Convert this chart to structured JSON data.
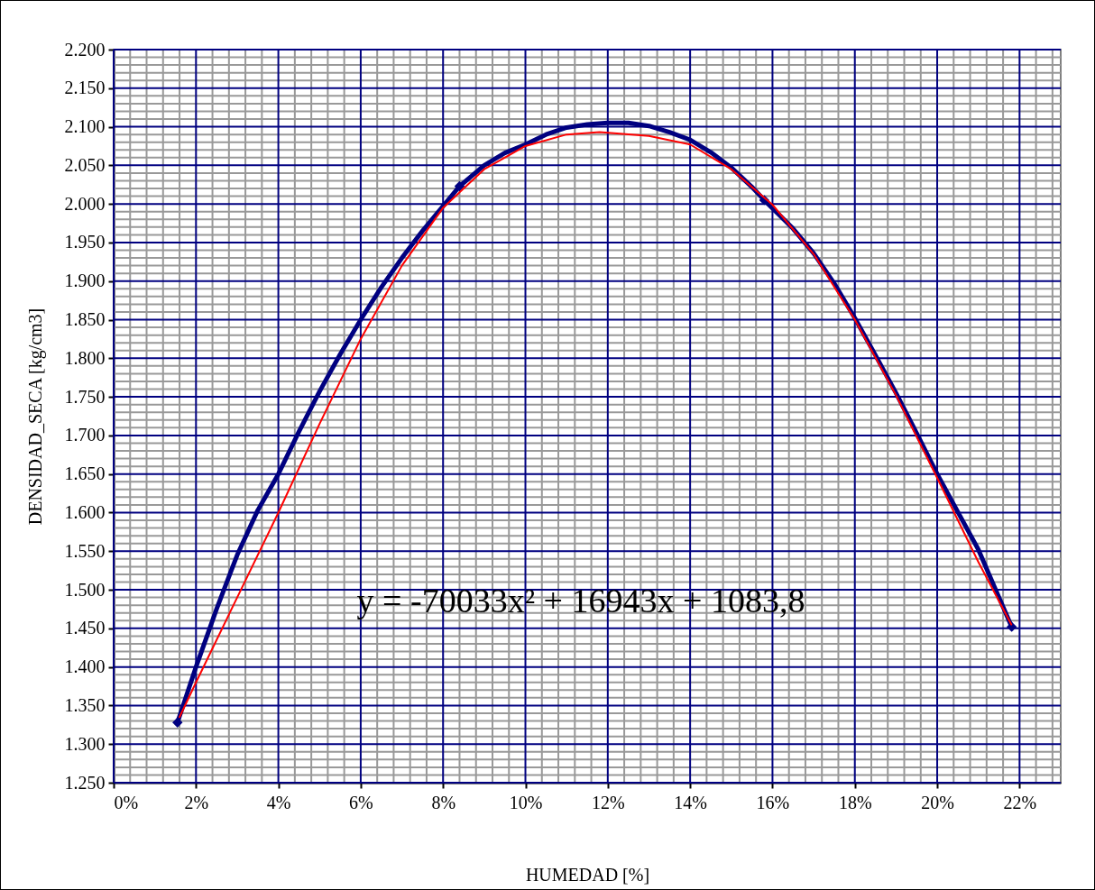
{
  "chart_data": {
    "type": "line",
    "xlabel": "HUMEDAD [%]",
    "ylabel": "DENSIDAD_SECA  [kg/cm3]",
    "annotations": [
      "y = -70033x² + 16943x + 1083,8"
    ],
    "xlim": [
      0,
      23
    ],
    "ylim": [
      1.25,
      2.2
    ],
    "grid": true,
    "series": [
      {
        "color": "#000080",
        "x": [
          1.55,
          2,
          2.5,
          3,
          3.5,
          4,
          4.5,
          5,
          5.5,
          6,
          6.5,
          7,
          7.5,
          8,
          8.4,
          9,
          9.5,
          10,
          10.5,
          11,
          11.5,
          12,
          12.5,
          13,
          13.5,
          14,
          14.5,
          15,
          15.5,
          15.8,
          16.5,
          17,
          17.5,
          18,
          18.5,
          19,
          19.5,
          20,
          20.5,
          21,
          21.5,
          21.81
        ],
        "values": [
          1.328,
          1.4,
          1.475,
          1.545,
          1.603,
          1.65,
          1.705,
          1.757,
          1.805,
          1.85,
          1.892,
          1.93,
          1.965,
          1.997,
          2.023,
          2.05,
          2.066,
          2.077,
          2.09,
          2.099,
          2.103,
          2.105,
          2.105,
          2.101,
          2.093,
          2.083,
          2.067,
          2.047,
          2.022,
          2.005,
          1.968,
          1.936,
          1.897,
          1.852,
          1.804,
          1.755,
          1.703,
          1.65,
          1.601,
          1.552,
          1.49,
          1.452
        ]
      },
      {
        "type": "scatter",
        "marker": "diamond",
        "color": "#000080",
        "x": [
          1.55,
          8.4,
          15.8,
          21.81
        ],
        "values": [
          1.328,
          2.023,
          2.005,
          1.452
        ]
      },
      {
        "color": "#ff0000",
        "x": [
          1.6,
          2,
          3,
          4,
          5,
          6,
          7,
          8,
          9,
          10,
          11,
          11.8,
          13,
          14,
          15,
          16,
          17,
          18,
          19,
          20,
          21,
          21.8
        ],
        "values": [
          1.335,
          1.38,
          1.49,
          1.6,
          1.715,
          1.825,
          1.92,
          1.995,
          2.045,
          2.075,
          2.09,
          2.093,
          2.088,
          2.077,
          2.045,
          1.999,
          1.935,
          1.85,
          1.752,
          1.645,
          1.536,
          1.455
        ]
      }
    ],
    "xticks": [
      {
        "value": 0,
        "label": "0%"
      },
      {
        "value": 0.4,
        "label": null
      },
      {
        "value": 0.8,
        "label": null
      },
      {
        "value": 1.2,
        "label": null
      },
      {
        "value": 1.6,
        "label": null
      },
      {
        "value": 2,
        "label": "2%"
      },
      {
        "value": 2.4,
        "label": null
      },
      {
        "value": 2.8,
        "label": null
      },
      {
        "value": 3.2,
        "label": null
      },
      {
        "value": 3.6,
        "label": null
      },
      {
        "value": 4,
        "label": "4%"
      },
      {
        "value": 4.4,
        "label": null
      },
      {
        "value": 4.8,
        "label": null
      },
      {
        "value": 5.2,
        "label": null
      },
      {
        "value": 5.6,
        "label": null
      },
      {
        "value": 6,
        "label": "6%"
      },
      {
        "value": 6.4,
        "label": null
      },
      {
        "value": 6.8,
        "label": null
      },
      {
        "value": 7.2,
        "label": null
      },
      {
        "value": 7.6,
        "label": null
      },
      {
        "value": 8,
        "label": "8%"
      },
      {
        "value": 8.4,
        "label": null
      },
      {
        "value": 8.8,
        "label": null
      },
      {
        "value": 9.2,
        "label": null
      },
      {
        "value": 9.6,
        "label": null
      },
      {
        "value": 10,
        "label": "10%"
      },
      {
        "value": 10.4,
        "label": null
      },
      {
        "value": 10.8,
        "label": null
      },
      {
        "value": 11.2,
        "label": null
      },
      {
        "value": 11.6,
        "label": null
      },
      {
        "value": 12,
        "label": "12%"
      },
      {
        "value": 12.4,
        "label": null
      },
      {
        "value": 12.8,
        "label": null
      },
      {
        "value": 13.2,
        "label": null
      },
      {
        "value": 13.6,
        "label": null
      },
      {
        "value": 14,
        "label": "14%"
      },
      {
        "value": 14.4,
        "label": null
      },
      {
        "value": 14.8,
        "label": null
      },
      {
        "value": 15.2,
        "label": null
      },
      {
        "value": 15.6,
        "label": null
      },
      {
        "value": 16,
        "label": "16%"
      },
      {
        "value": 16.4,
        "label": null
      },
      {
        "value": 16.8,
        "label": null
      },
      {
        "value": 17.2,
        "label": null
      },
      {
        "value": 17.6,
        "label": null
      },
      {
        "value": 18,
        "label": "18%"
      },
      {
        "value": 18.4,
        "label": null
      },
      {
        "value": 18.8,
        "label": null
      },
      {
        "value": 19.2,
        "label": null
      },
      {
        "value": 19.6,
        "label": null
      },
      {
        "value": 20,
        "label": "20%"
      },
      {
        "value": 20.4,
        "label": null
      },
      {
        "value": 20.8,
        "label": null
      },
      {
        "value": 21.2,
        "label": null
      },
      {
        "value": 21.6,
        "label": null
      },
      {
        "value": 22,
        "label": "22%"
      },
      {
        "value": 22.4,
        "label": null
      },
      {
        "value": 22.8,
        "label": null
      }
    ],
    "yticks": [
      {
        "value": 1.25,
        "label": "1.250"
      },
      {
        "value": 1.26,
        "label": null
      },
      {
        "value": 1.27,
        "label": null
      },
      {
        "value": 1.28,
        "label": null
      },
      {
        "value": 1.29,
        "label": null
      },
      {
        "value": 1.3,
        "label": "1.300"
      },
      {
        "value": 1.31,
        "label": null
      },
      {
        "value": 1.32,
        "label": null
      },
      {
        "value": 1.33,
        "label": null
      },
      {
        "value": 1.34,
        "label": null
      },
      {
        "value": 1.35,
        "label": "1.350"
      },
      {
        "value": 1.36,
        "label": null
      },
      {
        "value": 1.37,
        "label": null
      },
      {
        "value": 1.38,
        "label": null
      },
      {
        "value": 1.39,
        "label": null
      },
      {
        "value": 1.4,
        "label": "1.400"
      },
      {
        "value": 1.41,
        "label": null
      },
      {
        "value": 1.42,
        "label": null
      },
      {
        "value": 1.43,
        "label": null
      },
      {
        "value": 1.44,
        "label": null
      },
      {
        "value": 1.45,
        "label": "1.450"
      },
      {
        "value": 1.46,
        "label": null
      },
      {
        "value": 1.47,
        "label": null
      },
      {
        "value": 1.48,
        "label": null
      },
      {
        "value": 1.49,
        "label": null
      },
      {
        "value": 1.5,
        "label": "1.500"
      },
      {
        "value": 1.51,
        "label": null
      },
      {
        "value": 1.52,
        "label": null
      },
      {
        "value": 1.53,
        "label": null
      },
      {
        "value": 1.54,
        "label": null
      },
      {
        "value": 1.55,
        "label": "1.550"
      },
      {
        "value": 1.56,
        "label": null
      },
      {
        "value": 1.57,
        "label": null
      },
      {
        "value": 1.58,
        "label": null
      },
      {
        "value": 1.59,
        "label": null
      },
      {
        "value": 1.6,
        "label": "1.600"
      },
      {
        "value": 1.61,
        "label": null
      },
      {
        "value": 1.62,
        "label": null
      },
      {
        "value": 1.63,
        "label": null
      },
      {
        "value": 1.64,
        "label": null
      },
      {
        "value": 1.65,
        "label": "1.650"
      },
      {
        "value": 1.66,
        "label": null
      },
      {
        "value": 1.67,
        "label": null
      },
      {
        "value": 1.68,
        "label": null
      },
      {
        "value": 1.69,
        "label": null
      },
      {
        "value": 1.7,
        "label": "1.700"
      },
      {
        "value": 1.71,
        "label": null
      },
      {
        "value": 1.72,
        "label": null
      },
      {
        "value": 1.73,
        "label": null
      },
      {
        "value": 1.74,
        "label": null
      },
      {
        "value": 1.75,
        "label": "1.750"
      },
      {
        "value": 1.76,
        "label": null
      },
      {
        "value": 1.77,
        "label": null
      },
      {
        "value": 1.78,
        "label": null
      },
      {
        "value": 1.79,
        "label": null
      },
      {
        "value": 1.8,
        "label": "1.800"
      },
      {
        "value": 1.81,
        "label": null
      },
      {
        "value": 1.82,
        "label": null
      },
      {
        "value": 1.83,
        "label": null
      },
      {
        "value": 1.84,
        "label": null
      },
      {
        "value": 1.85,
        "label": "1.850"
      },
      {
        "value": 1.86,
        "label": null
      },
      {
        "value": 1.87,
        "label": null
      },
      {
        "value": 1.88,
        "label": null
      },
      {
        "value": 1.89,
        "label": null
      },
      {
        "value": 1.9,
        "label": "1.900"
      },
      {
        "value": 1.91,
        "label": null
      },
      {
        "value": 1.92,
        "label": null
      },
      {
        "value": 1.93,
        "label": null
      },
      {
        "value": 1.94,
        "label": null
      },
      {
        "value": 1.95,
        "label": "1.950"
      },
      {
        "value": 1.96,
        "label": null
      },
      {
        "value": 1.97,
        "label": null
      },
      {
        "value": 1.98,
        "label": null
      },
      {
        "value": 1.99,
        "label": null
      },
      {
        "value": 2,
        "label": "2.000"
      },
      {
        "value": 2.01,
        "label": null
      },
      {
        "value": 2.02,
        "label": null
      },
      {
        "value": 2.03,
        "label": null
      },
      {
        "value": 2.04,
        "label": null
      },
      {
        "value": 2.05,
        "label": "2.050"
      },
      {
        "value": 2.06,
        "label": null
      },
      {
        "value": 2.07,
        "label": null
      },
      {
        "value": 2.08,
        "label": null
      },
      {
        "value": 2.09,
        "label": null
      },
      {
        "value": 2.1,
        "label": "2.100"
      },
      {
        "value": 2.11,
        "label": null
      },
      {
        "value": 2.12,
        "label": null
      },
      {
        "value": 2.13,
        "label": null
      },
      {
        "value": 2.14,
        "label": null
      },
      {
        "value": 2.15,
        "label": "2.150"
      },
      {
        "value": 2.16,
        "label": null
      },
      {
        "value": 2.17,
        "label": null
      },
      {
        "value": 2.18,
        "label": null
      },
      {
        "value": 2.19,
        "label": null
      },
      {
        "value": 2.2,
        "label": "2.200"
      }
    ]
  }
}
